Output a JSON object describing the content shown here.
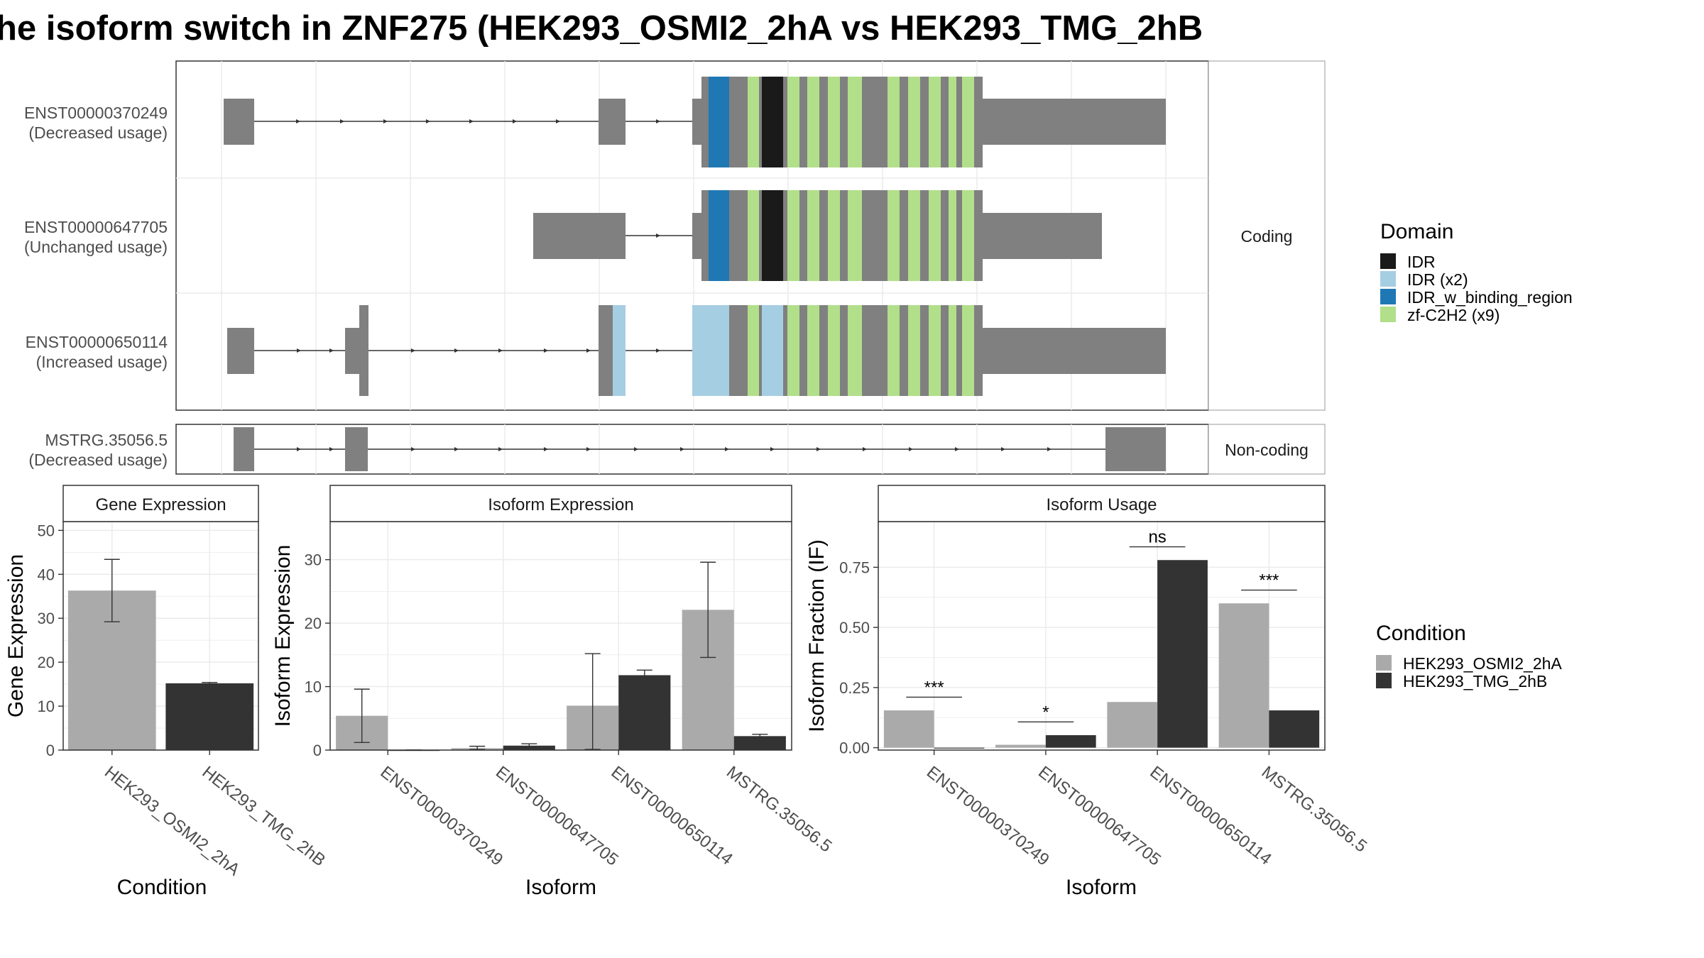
{
  "title": "he isoform switch in ZNF275 (HEK293_OSMI2_2hA vs HEK293_TMG_2hB",
  "structure": {
    "coding_label": "Coding",
    "noncoding_label": "Non-coding",
    "transcripts": [
      {
        "id": "ENST00000370249",
        "usage": "(Decreased usage)"
      },
      {
        "id": "ENST00000647705",
        "usage": "(Unchanged usage)"
      },
      {
        "id": "ENST00000650114",
        "usage": "(Increased usage)"
      },
      {
        "id": "MSTRG.35056.5",
        "usage": "(Decreased usage)"
      }
    ]
  },
  "domain_legend": {
    "title": "Domain",
    "items": [
      {
        "label": "IDR",
        "color": "#1a1a1a"
      },
      {
        "label": "IDR (x2)",
        "color": "#a6cee3"
      },
      {
        "label": "IDR_w_binding_region",
        "color": "#1f78b4"
      },
      {
        "label": "zf-C2H2 (x9)",
        "color": "#b2df8a"
      }
    ]
  },
  "condition_legend": {
    "title": "Condition",
    "items": [
      {
        "label": "HEK293_OSMI2_2hA",
        "color": "#aaaaaa"
      },
      {
        "label": "HEK293_TMG_2hB",
        "color": "#333333"
      }
    ]
  },
  "chart_data": [
    {
      "type": "bar",
      "title": "Gene Expression",
      "xlabel": "Condition",
      "ylabel": "Gene Expression",
      "categories": [
        "HEK293_OSMI2_2hA",
        "HEK293_TMG_2hB"
      ],
      "values": [
        36.3,
        15.2
      ],
      "error_low": [
        29.2,
        15.0
      ],
      "error_high": [
        43.4,
        15.4
      ],
      "ylim": [
        0,
        52
      ],
      "yticks": [
        0,
        10,
        20,
        30,
        40,
        50
      ]
    },
    {
      "type": "bar",
      "title": "Isoform Expression",
      "xlabel": "Isoform",
      "ylabel": "Isoform Expression",
      "categories": [
        "ENST00000370249",
        "ENST00000647705",
        "ENST00000650114",
        "MSTRG.35056.5"
      ],
      "series": [
        {
          "name": "HEK293_OSMI2_2hA",
          "values": [
            5.4,
            0.3,
            7.0,
            22.1
          ],
          "error_low": [
            1.2,
            0.1,
            0.1,
            14.6
          ],
          "error_high": [
            9.6,
            0.6,
            15.2,
            29.6
          ]
        },
        {
          "name": "HEK293_TMG_2hB",
          "values": [
            0.0,
            0.7,
            11.8,
            2.2
          ],
          "error_low": [
            0.0,
            0.5,
            11.2,
            1.9
          ],
          "error_high": [
            0.0,
            1.0,
            12.6,
            2.5
          ]
        }
      ],
      "ylim": [
        0,
        36
      ],
      "yticks": [
        0,
        10,
        20,
        30
      ]
    },
    {
      "type": "bar",
      "title": "Isoform Usage",
      "xlabel": "Isoform",
      "ylabel": "Isoform Fraction (IF)",
      "categories": [
        "ENST00000370249",
        "ENST00000647705",
        "ENST00000650114",
        "MSTRG.35056.5"
      ],
      "series": [
        {
          "name": "HEK293_OSMI2_2hA",
          "values": [
            0.155,
            0.012,
            0.19,
            0.6
          ]
        },
        {
          "name": "HEK293_TMG_2hB",
          "values": [
            0.0,
            0.052,
            0.78,
            0.155
          ]
        }
      ],
      "significance": [
        "***",
        "*",
        "ns",
        "***"
      ],
      "ylim": [
        -0.01,
        0.94
      ],
      "yticks": [
        0.0,
        0.25,
        0.5,
        0.75
      ],
      "ytick_labels": [
        "0.00",
        "0.25",
        "0.50",
        "0.75"
      ]
    }
  ]
}
